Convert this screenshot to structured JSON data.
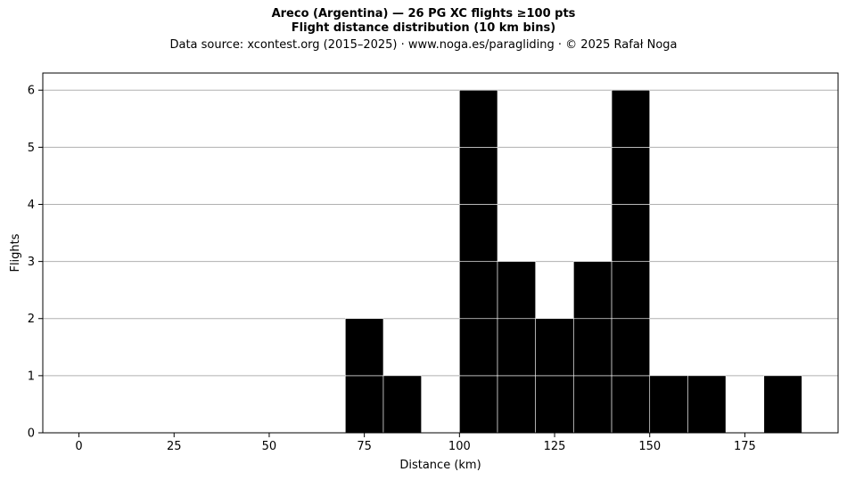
{
  "header": {
    "title_line1": "Areco (Argentina)  —  26 PG XC flights ≥100 pts",
    "title_line2": "Flight distance distribution (10 km bins)",
    "subtitle": "Data source: xcontest.org (2015–2025)  ·  www.noga.es/paragliding  ·  © 2025 Rafał Noga"
  },
  "chart_data": {
    "type": "bar",
    "title": "Areco (Argentina)  —  26 PG XC flights ≥100 pts",
    "subtitle": "Flight distance distribution (10 km bins)",
    "xlabel": "Distance (km)",
    "ylabel": "Flights",
    "bin_width": 10,
    "bins": [
      {
        "start": 70,
        "count": 2
      },
      {
        "start": 80,
        "count": 1
      },
      {
        "start": 100,
        "count": 6
      },
      {
        "start": 110,
        "count": 3
      },
      {
        "start": 120,
        "count": 2
      },
      {
        "start": 130,
        "count": 3
      },
      {
        "start": 140,
        "count": 6
      },
      {
        "start": 150,
        "count": 1
      },
      {
        "start": 160,
        "count": 1
      },
      {
        "start": 180,
        "count": 1
      }
    ],
    "xlim": [
      -9.5,
      199.5
    ],
    "ylim": [
      0,
      6.3
    ],
    "xticks": [
      0,
      25,
      50,
      75,
      100,
      125,
      150,
      175
    ],
    "yticks": [
      0,
      1,
      2,
      3,
      4,
      5,
      6
    ],
    "grid": "horizontal",
    "bar_color": "#000000",
    "grid_color": "#b0b0b0"
  }
}
